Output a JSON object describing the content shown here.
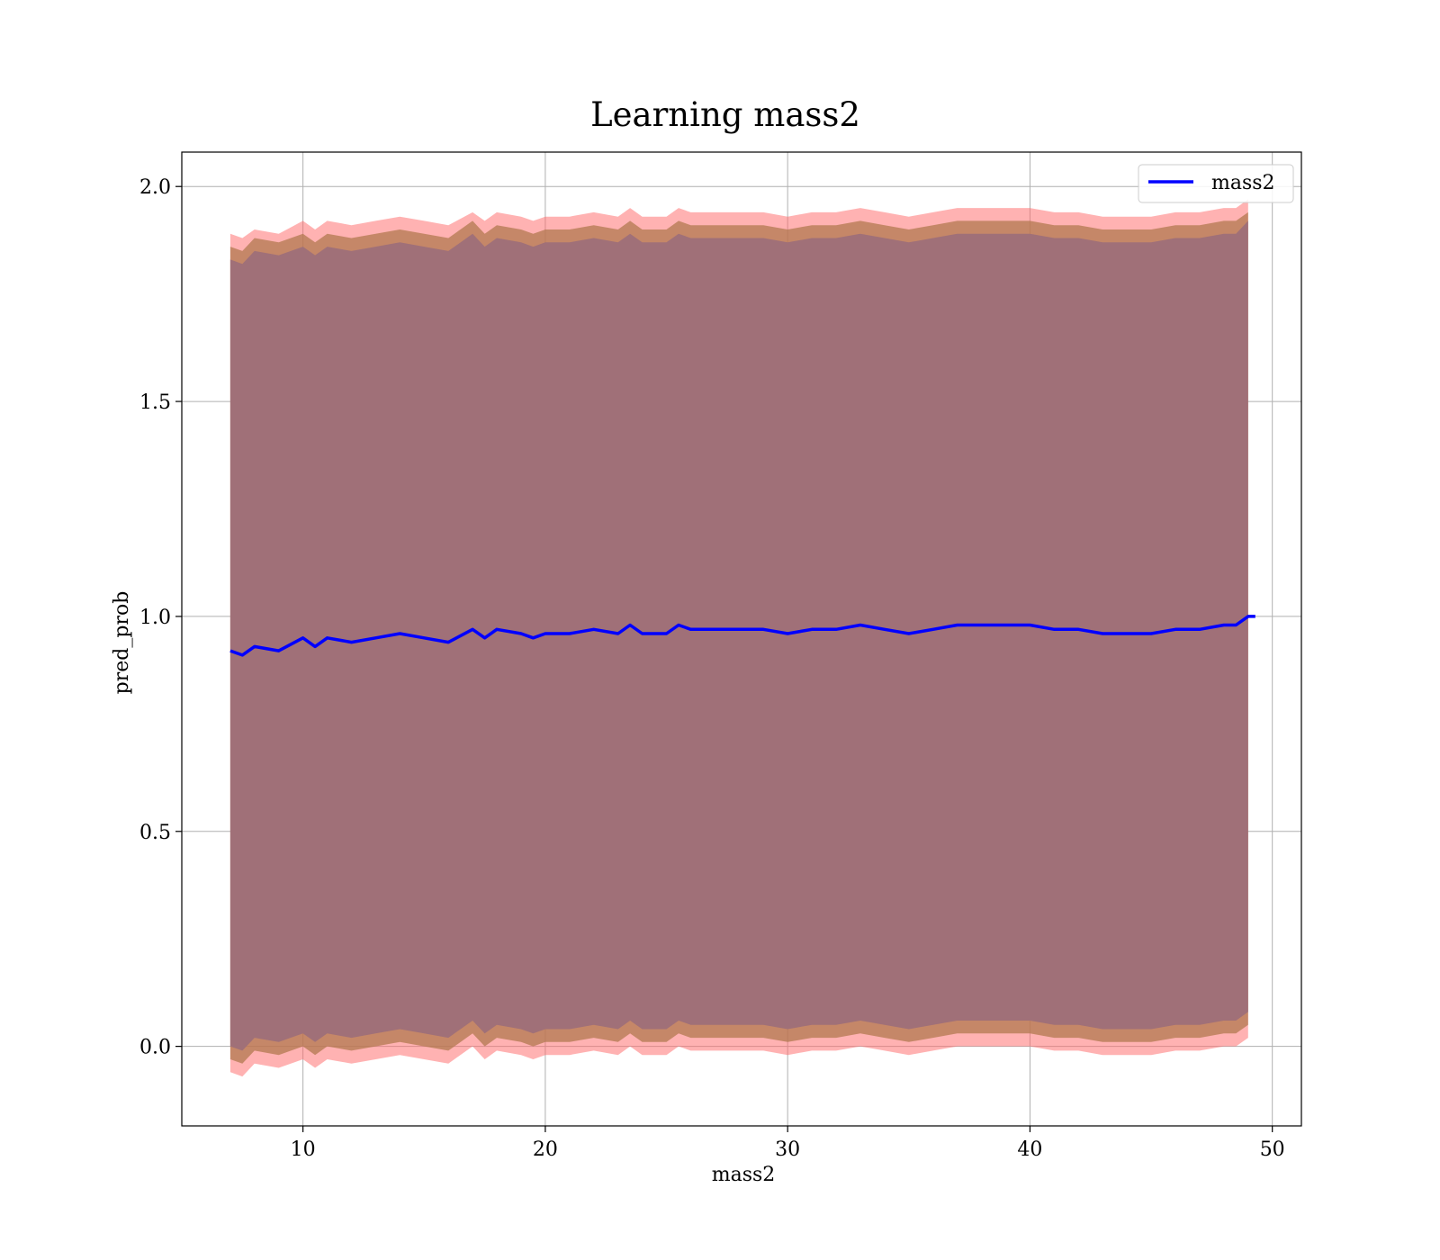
{
  "chart_data": {
    "type": "line",
    "title": "Learning mass2",
    "xlabel": "mass2",
    "ylabel": "pred_prob",
    "xlim": [
      5,
      51.2
    ],
    "ylim": [
      -0.185,
      2.08
    ],
    "x_ticks": [
      10,
      20,
      30,
      40,
      50
    ],
    "y_ticks": [
      0.0,
      0.5,
      1.0,
      1.5,
      2.0
    ],
    "x_tick_labels": [
      "10",
      "20",
      "30",
      "40",
      "50"
    ],
    "y_tick_labels": [
      "0.0",
      "0.5",
      "1.0",
      "1.5",
      "2.0"
    ],
    "grid": true,
    "legend": {
      "position": "top-right",
      "entries": [
        "mass2"
      ]
    },
    "colors": {
      "line": "#0000ff",
      "outer_band": "#ff6666",
      "middle_band": "#b2784f",
      "inner_band": "#a07078",
      "grid": "#b0b0b0"
    },
    "series": [
      {
        "name": "mass2",
        "x": [
          7.0,
          7.5,
          8.0,
          9.0,
          10.0,
          10.5,
          11.0,
          12.0,
          13.0,
          14.0,
          15.0,
          16.0,
          17.0,
          17.5,
          18.0,
          19.0,
          19.5,
          20.0,
          21.0,
          22.0,
          23.0,
          23.5,
          24.0,
          25.0,
          25.5,
          26.0,
          27.0,
          28.0,
          29.0,
          30.0,
          31.0,
          32.0,
          33.0,
          34.0,
          35.0,
          36.0,
          37.0,
          38.0,
          39.0,
          40.0,
          41.0,
          42.0,
          43.0,
          44.0,
          45.0,
          46.0,
          47.0,
          48.0,
          48.5,
          49.0
        ],
        "y": [
          0.92,
          0.91,
          0.93,
          0.92,
          0.95,
          0.93,
          0.95,
          0.94,
          0.95,
          0.96,
          0.95,
          0.94,
          0.97,
          0.95,
          0.97,
          0.96,
          0.95,
          0.96,
          0.96,
          0.97,
          0.96,
          0.98,
          0.96,
          0.96,
          0.98,
          0.97,
          0.97,
          0.97,
          0.97,
          0.96,
          0.97,
          0.97,
          0.98,
          0.97,
          0.96,
          0.97,
          0.98,
          0.98,
          0.98,
          0.98,
          0.97,
          0.97,
          0.96,
          0.96,
          0.96,
          0.97,
          0.97,
          0.98,
          0.98,
          1.0
        ],
        "outer_upper": [
          1.89,
          1.88,
          1.9,
          1.89,
          1.92,
          1.9,
          1.92,
          1.91,
          1.92,
          1.93,
          1.92,
          1.91,
          1.94,
          1.92,
          1.94,
          1.93,
          1.92,
          1.93,
          1.93,
          1.94,
          1.93,
          1.95,
          1.93,
          1.93,
          1.95,
          1.94,
          1.94,
          1.94,
          1.94,
          1.93,
          1.94,
          1.94,
          1.95,
          1.94,
          1.93,
          1.94,
          1.95,
          1.95,
          1.95,
          1.95,
          1.94,
          1.94,
          1.93,
          1.93,
          1.93,
          1.94,
          1.94,
          1.95,
          1.95,
          1.97
        ],
        "middle_upper": [
          1.86,
          1.85,
          1.88,
          1.87,
          1.89,
          1.87,
          1.89,
          1.88,
          1.89,
          1.9,
          1.89,
          1.88,
          1.92,
          1.89,
          1.91,
          1.9,
          1.89,
          1.9,
          1.9,
          1.91,
          1.9,
          1.92,
          1.9,
          1.9,
          1.92,
          1.91,
          1.91,
          1.91,
          1.91,
          1.9,
          1.91,
          1.91,
          1.92,
          1.91,
          1.9,
          1.91,
          1.92,
          1.92,
          1.92,
          1.92,
          1.91,
          1.91,
          1.9,
          1.9,
          1.9,
          1.91,
          1.91,
          1.92,
          1.92,
          1.94
        ],
        "inner_upper": [
          1.83,
          1.82,
          1.85,
          1.84,
          1.86,
          1.84,
          1.86,
          1.85,
          1.86,
          1.87,
          1.86,
          1.85,
          1.89,
          1.86,
          1.88,
          1.87,
          1.86,
          1.87,
          1.87,
          1.88,
          1.87,
          1.89,
          1.87,
          1.87,
          1.89,
          1.88,
          1.88,
          1.88,
          1.88,
          1.87,
          1.88,
          1.88,
          1.89,
          1.88,
          1.87,
          1.88,
          1.89,
          1.89,
          1.89,
          1.89,
          1.88,
          1.88,
          1.87,
          1.87,
          1.87,
          1.88,
          1.88,
          1.89,
          1.89,
          1.92
        ],
        "inner_lower": [
          0.0,
          -0.01,
          0.02,
          0.01,
          0.03,
          0.01,
          0.03,
          0.02,
          0.03,
          0.04,
          0.03,
          0.02,
          0.06,
          0.03,
          0.05,
          0.04,
          0.03,
          0.04,
          0.04,
          0.05,
          0.04,
          0.06,
          0.04,
          0.04,
          0.06,
          0.05,
          0.05,
          0.05,
          0.05,
          0.04,
          0.05,
          0.05,
          0.06,
          0.05,
          0.04,
          0.05,
          0.06,
          0.06,
          0.06,
          0.06,
          0.05,
          0.05,
          0.04,
          0.04,
          0.04,
          0.05,
          0.05,
          0.06,
          0.06,
          0.08
        ],
        "middle_lower": [
          -0.03,
          -0.04,
          -0.01,
          -0.02,
          0.0,
          -0.02,
          0.0,
          -0.01,
          0.0,
          0.01,
          0.0,
          -0.01,
          0.03,
          0.0,
          0.02,
          0.01,
          0.0,
          0.01,
          0.01,
          0.02,
          0.01,
          0.03,
          0.01,
          0.01,
          0.03,
          0.02,
          0.02,
          0.02,
          0.02,
          0.01,
          0.02,
          0.02,
          0.03,
          0.02,
          0.01,
          0.02,
          0.03,
          0.03,
          0.03,
          0.03,
          0.02,
          0.02,
          0.01,
          0.01,
          0.01,
          0.02,
          0.02,
          0.03,
          0.03,
          0.05
        ],
        "outer_lower": [
          -0.06,
          -0.07,
          -0.04,
          -0.05,
          -0.03,
          -0.05,
          -0.03,
          -0.04,
          -0.03,
          -0.02,
          -0.03,
          -0.04,
          0.0,
          -0.03,
          -0.01,
          -0.02,
          -0.03,
          -0.02,
          -0.02,
          -0.01,
          -0.02,
          0.0,
          -0.02,
          -0.02,
          0.0,
          -0.01,
          -0.01,
          -0.01,
          -0.01,
          -0.02,
          -0.01,
          -0.01,
          0.0,
          -0.01,
          -0.02,
          -0.01,
          0.0,
          0.0,
          0.0,
          0.0,
          -0.01,
          -0.01,
          -0.02,
          -0.02,
          -0.02,
          -0.01,
          -0.01,
          0.0,
          0.0,
          0.02
        ]
      }
    ]
  }
}
